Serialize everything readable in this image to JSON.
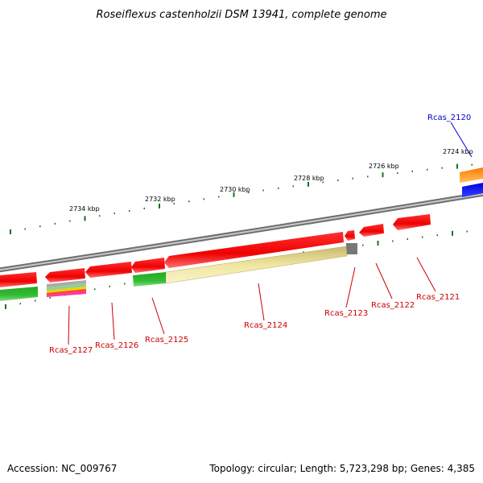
{
  "header": {
    "title": "Roseiflexus castenholzii DSM 13941, complete genome"
  },
  "footer": {
    "accession": "Accession: NC_009767",
    "summary": "Topology: circular; Length: 5,723,298 bp; Genes: 4,385"
  },
  "colors": {
    "backbone": "#8a8a8a",
    "cds_red": "#ee0000",
    "tick": "#1f6e1f",
    "pseudo_gray": "#777777",
    "label_red": "#cc0000",
    "label_blue": "#0000cc",
    "gene_green": "#33bb33",
    "gene_yellow": "#f0e6a0",
    "gene_orange": "#ff8c00",
    "gene_blue": "#0000ee"
  },
  "scale_labels": [
    "2724 kbp",
    "2726 kbp",
    "2728 kbp",
    "2730 kbp",
    "2732 kbp",
    "2734 kbp"
  ],
  "gene_labels": [
    {
      "text": "Rcas_2120",
      "color": "blue"
    },
    {
      "text": "Rcas_2121",
      "color": "red"
    },
    {
      "text": "Rcas_2122",
      "color": "red"
    },
    {
      "text": "Rcas_2123",
      "color": "red"
    },
    {
      "text": "Rcas_2124",
      "color": "red"
    },
    {
      "text": "Rcas_2125",
      "color": "red"
    },
    {
      "text": "Rcas_2126",
      "color": "red"
    },
    {
      "text": "Rcas_2127",
      "color": "red"
    }
  ]
}
